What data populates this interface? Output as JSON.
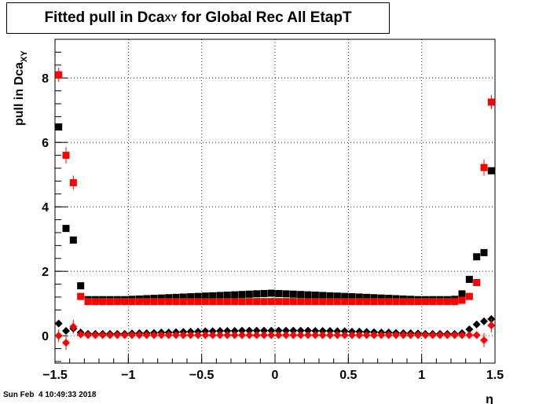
{
  "chart_data": {
    "type": "scatter",
    "title": {
      "main": "Fitted pull in Dca",
      "sub": "XY",
      "rest": " for Global Rec All EtapT"
    },
    "xlabel": "η",
    "ylabel": {
      "main": "pull in Dca",
      "sub": "XY"
    },
    "xlim": [
      -1.5,
      1.5
    ],
    "ylim": [
      -0.85,
      9.2
    ],
    "x_ticks": [
      -1.5,
      -1,
      -0.5,
      0,
      0.5,
      1,
      1.5
    ],
    "x_tick_labels": [
      "−1.5",
      "−1",
      "−0.5",
      "0",
      "0.5",
      "1",
      "1.5"
    ],
    "y_ticks": [
      0,
      2,
      4,
      6,
      8
    ],
    "y_tick_labels": [
      "0",
      "2",
      "4",
      "6",
      "8"
    ],
    "grid": true,
    "colors": {
      "black": "#000000",
      "red": "#ff0000"
    },
    "x": [
      -1.475,
      -1.425,
      -1.375,
      -1.325,
      -1.275,
      -1.225,
      -1.175,
      -1.125,
      -1.075,
      -1.025,
      -0.975,
      -0.925,
      -0.875,
      -0.825,
      -0.775,
      -0.725,
      -0.675,
      -0.625,
      -0.575,
      -0.525,
      -0.475,
      -0.425,
      -0.375,
      -0.325,
      -0.275,
      -0.225,
      -0.175,
      -0.125,
      -0.075,
      -0.025,
      0.025,
      0.075,
      0.125,
      0.175,
      0.225,
      0.275,
      0.325,
      0.375,
      0.425,
      0.475,
      0.525,
      0.575,
      0.625,
      0.675,
      0.725,
      0.775,
      0.825,
      0.875,
      0.925,
      0.975,
      1.025,
      1.075,
      1.125,
      1.175,
      1.225,
      1.275,
      1.325,
      1.375,
      1.425,
      1.475
    ],
    "series": [
      {
        "color": "#000000",
        "marker": "square",
        "values": [
          6.48,
          3.33,
          2.97,
          1.55,
          1.12,
          1.12,
          1.12,
          1.12,
          1.12,
          1.12,
          1.13,
          1.14,
          1.15,
          1.16,
          1.17,
          1.18,
          1.19,
          1.2,
          1.21,
          1.22,
          1.23,
          1.24,
          1.25,
          1.26,
          1.27,
          1.28,
          1.29,
          1.3,
          1.31,
          1.32,
          1.31,
          1.3,
          1.29,
          1.28,
          1.27,
          1.26,
          1.25,
          1.24,
          1.23,
          1.22,
          1.21,
          1.2,
          1.19,
          1.18,
          1.17,
          1.16,
          1.15,
          1.14,
          1.13,
          1.12,
          1.12,
          1.12,
          1.12,
          1.12,
          1.13,
          1.3,
          1.75,
          2.45,
          2.58,
          5.12
        ],
        "errors": [
          0.1,
          0.1,
          0.05,
          0.04,
          0.02,
          0.02,
          0.02,
          0.02,
          0.02,
          0.02,
          0.02,
          0.02,
          0.02,
          0.02,
          0.02,
          0.02,
          0.02,
          0.02,
          0.02,
          0.02,
          0.02,
          0.02,
          0.02,
          0.02,
          0.02,
          0.02,
          0.02,
          0.02,
          0.02,
          0.02,
          0.02,
          0.02,
          0.02,
          0.02,
          0.02,
          0.02,
          0.02,
          0.02,
          0.02,
          0.02,
          0.02,
          0.02,
          0.02,
          0.02,
          0.02,
          0.02,
          0.02,
          0.02,
          0.02,
          0.02,
          0.02,
          0.02,
          0.02,
          0.02,
          0.02,
          0.03,
          0.04,
          0.05,
          0.08,
          0.1
        ]
      },
      {
        "color": "#ff0000",
        "marker": "square",
        "values": [
          8.1,
          5.6,
          4.75,
          1.22,
          1.06,
          1.06,
          1.06,
          1.06,
          1.06,
          1.06,
          1.06,
          1.06,
          1.06,
          1.06,
          1.06,
          1.06,
          1.06,
          1.06,
          1.06,
          1.06,
          1.06,
          1.06,
          1.06,
          1.06,
          1.06,
          1.06,
          1.06,
          1.06,
          1.06,
          1.06,
          1.06,
          1.06,
          1.06,
          1.06,
          1.06,
          1.06,
          1.06,
          1.06,
          1.06,
          1.06,
          1.06,
          1.06,
          1.06,
          1.06,
          1.06,
          1.06,
          1.06,
          1.06,
          1.06,
          1.06,
          1.06,
          1.06,
          1.06,
          1.06,
          1.06,
          1.1,
          1.22,
          1.65,
          5.22,
          7.25
        ],
        "errors": [
          0.22,
          0.25,
          0.22,
          0.06,
          0.03,
          0.03,
          0.03,
          0.03,
          0.03,
          0.03,
          0.03,
          0.03,
          0.03,
          0.03,
          0.03,
          0.03,
          0.03,
          0.03,
          0.03,
          0.03,
          0.03,
          0.03,
          0.03,
          0.03,
          0.03,
          0.03,
          0.03,
          0.03,
          0.03,
          0.03,
          0.03,
          0.03,
          0.03,
          0.03,
          0.03,
          0.03,
          0.03,
          0.03,
          0.03,
          0.03,
          0.03,
          0.03,
          0.03,
          0.03,
          0.03,
          0.03,
          0.03,
          0.03,
          0.03,
          0.03,
          0.03,
          0.03,
          0.03,
          0.03,
          0.03,
          0.04,
          0.05,
          0.07,
          0.25,
          0.22
        ]
      },
      {
        "color": "#000000",
        "marker": "diamond",
        "values": [
          0.38,
          0.15,
          0.22,
          0.1,
          0.06,
          0.06,
          0.06,
          0.06,
          0.06,
          0.06,
          0.07,
          0.08,
          0.08,
          0.09,
          0.1,
          0.1,
          0.11,
          0.12,
          0.13,
          0.13,
          0.14,
          0.14,
          0.15,
          0.15,
          0.15,
          0.16,
          0.16,
          0.16,
          0.16,
          0.16,
          0.16,
          0.16,
          0.16,
          0.16,
          0.16,
          0.15,
          0.15,
          0.15,
          0.14,
          0.14,
          0.13,
          0.13,
          0.12,
          0.11,
          0.1,
          0.1,
          0.09,
          0.08,
          0.08,
          0.07,
          0.06,
          0.06,
          0.06,
          0.06,
          0.06,
          0.08,
          0.2,
          0.35,
          0.45,
          0.52
        ],
        "errors": [
          0.05,
          0.05,
          0.04,
          0.02,
          0.01,
          0.01,
          0.01,
          0.01,
          0.01,
          0.01,
          0.01,
          0.01,
          0.01,
          0.01,
          0.01,
          0.01,
          0.01,
          0.01,
          0.01,
          0.01,
          0.01,
          0.01,
          0.01,
          0.01,
          0.01,
          0.01,
          0.01,
          0.01,
          0.01,
          0.01,
          0.01,
          0.01,
          0.01,
          0.01,
          0.01,
          0.01,
          0.01,
          0.01,
          0.01,
          0.01,
          0.01,
          0.01,
          0.01,
          0.01,
          0.01,
          0.01,
          0.01,
          0.01,
          0.01,
          0.01,
          0.01,
          0.01,
          0.01,
          0.01,
          0.01,
          0.01,
          0.02,
          0.03,
          0.04,
          0.05
        ]
      },
      {
        "color": "#ff0000",
        "marker": "diamond",
        "values": [
          0.0,
          -0.22,
          0.28,
          0.04,
          0.02,
          0.02,
          0.02,
          0.02,
          0.02,
          0.02,
          0.02,
          0.02,
          0.02,
          0.02,
          0.02,
          0.02,
          0.02,
          0.02,
          0.02,
          0.02,
          0.02,
          0.02,
          0.02,
          0.02,
          0.02,
          0.02,
          0.02,
          0.02,
          0.02,
          0.02,
          0.02,
          0.02,
          0.02,
          0.02,
          0.02,
          0.02,
          0.02,
          0.02,
          0.02,
          0.02,
          0.02,
          0.02,
          0.02,
          0.02,
          0.02,
          0.02,
          0.02,
          0.02,
          0.02,
          0.02,
          0.02,
          0.02,
          0.02,
          0.02,
          0.02,
          0.02,
          0.02,
          0.02,
          -0.14,
          0.32
        ],
        "errors": [
          0.2,
          0.22,
          0.22,
          0.05,
          0.02,
          0.02,
          0.02,
          0.02,
          0.02,
          0.02,
          0.02,
          0.02,
          0.02,
          0.02,
          0.02,
          0.02,
          0.02,
          0.02,
          0.02,
          0.02,
          0.02,
          0.02,
          0.02,
          0.02,
          0.02,
          0.02,
          0.02,
          0.02,
          0.02,
          0.02,
          0.02,
          0.02,
          0.02,
          0.02,
          0.02,
          0.02,
          0.02,
          0.02,
          0.02,
          0.02,
          0.02,
          0.02,
          0.02,
          0.02,
          0.02,
          0.02,
          0.02,
          0.02,
          0.02,
          0.02,
          0.02,
          0.02,
          0.02,
          0.02,
          0.02,
          0.02,
          0.03,
          0.05,
          0.22,
          0.22
        ]
      }
    ]
  },
  "timestamp": "Sun Feb  4 10:49:33 2018"
}
